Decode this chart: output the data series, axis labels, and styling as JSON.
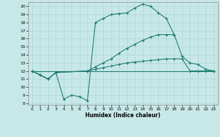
{
  "bg_color": "#c8e8e8",
  "grid_color": "#b0d8d8",
  "line_color": "#1a7a6e",
  "xlabel": "Humidex (Indice chaleur)",
  "xlim": [
    -0.5,
    23.5
  ],
  "ylim": [
    7.8,
    20.5
  ],
  "xticks": [
    0,
    1,
    2,
    3,
    4,
    5,
    6,
    7,
    8,
    9,
    10,
    11,
    12,
    13,
    14,
    15,
    16,
    17,
    18,
    19,
    20,
    21,
    22,
    23
  ],
  "yticks": [
    8,
    9,
    10,
    11,
    12,
    13,
    14,
    15,
    16,
    17,
    18,
    19,
    20
  ],
  "curve1_x": [
    0,
    1,
    2,
    3,
    4,
    5,
    6,
    7,
    8,
    9,
    10,
    11,
    12,
    13,
    14,
    15,
    16,
    17,
    18
  ],
  "curve1_y": [
    12,
    11.5,
    11,
    11.8,
    8.5,
    9.0,
    8.8,
    8.3,
    18.0,
    18.5,
    19.0,
    19.1,
    19.2,
    19.8,
    20.3,
    20.0,
    19.2,
    18.5,
    16.5
  ],
  "curve2_x": [
    0,
    1,
    2,
    3,
    7,
    8,
    9,
    10,
    11,
    12,
    13,
    14,
    15,
    16,
    17,
    18,
    19,
    20,
    21,
    22,
    23
  ],
  "curve2_y": [
    12,
    11.5,
    11,
    11.8,
    12.0,
    12.5,
    13.0,
    13.5,
    14.2,
    14.8,
    15.3,
    15.8,
    16.2,
    16.5,
    16.5,
    16.5,
    13.8,
    13.0,
    12.8,
    12.2,
    12.0
  ],
  "curve3_x": [
    0,
    1,
    2,
    3,
    7,
    8,
    9,
    10,
    11,
    12,
    13,
    14,
    15,
    16,
    17,
    18,
    19,
    20,
    21,
    22,
    23
  ],
  "curve3_y": [
    12,
    11.5,
    11,
    11.8,
    12.0,
    12.2,
    12.4,
    12.6,
    12.8,
    13.0,
    13.1,
    13.2,
    13.3,
    13.4,
    13.5,
    13.5,
    13.5,
    12.0,
    12.0,
    12.0,
    12.0
  ],
  "curve4_x": [
    0,
    23
  ],
  "curve4_y": [
    12,
    12
  ]
}
